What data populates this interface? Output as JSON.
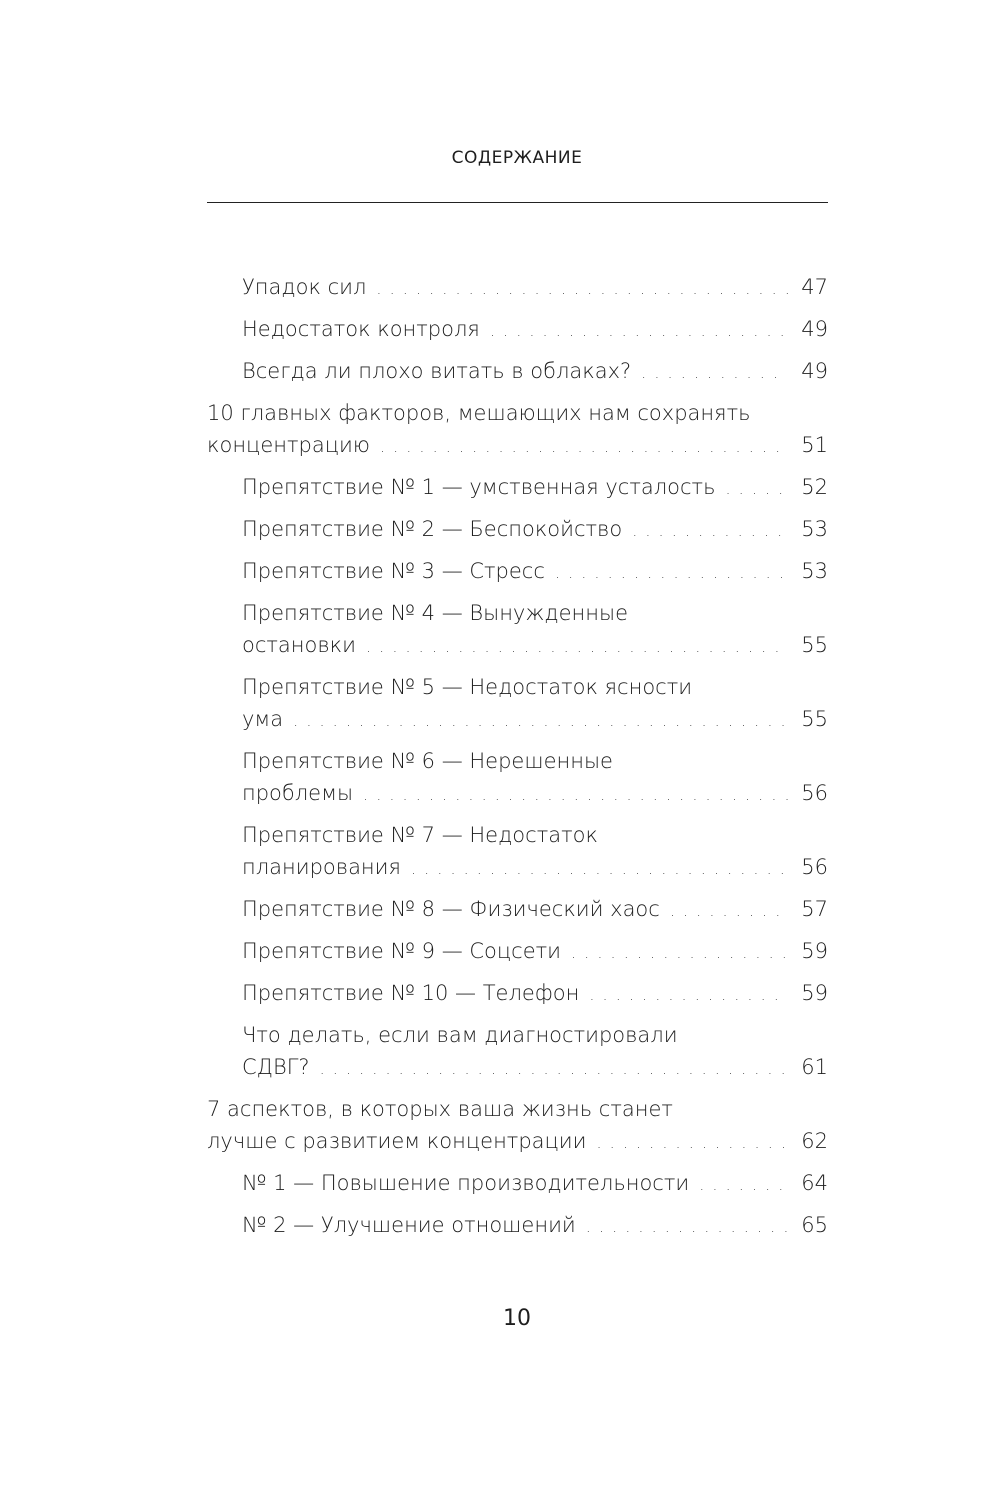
{
  "header": {
    "title": "СОДЕРЖАНИЕ"
  },
  "entries": [
    {
      "level": 2,
      "lines": [
        "Упадок сил"
      ],
      "page": "47"
    },
    {
      "level": 2,
      "lines": [
        "Недостаток контроля"
      ],
      "page": "49"
    },
    {
      "level": 2,
      "lines": [
        "Всегда ли плохо витать в облаках?"
      ],
      "page": "49"
    },
    {
      "level": 1,
      "lines": [
        "10 главных факторов, мешающих нам сохранять",
        "концентрацию"
      ],
      "page": "51"
    },
    {
      "level": 2,
      "lines": [
        "Препятствие № 1 — умственная усталость"
      ],
      "page": "52"
    },
    {
      "level": 2,
      "lines": [
        "Препятствие № 2 — Беспокойство"
      ],
      "page": "53"
    },
    {
      "level": 2,
      "lines": [
        "Препятствие № 3 — Стресс"
      ],
      "page": "53"
    },
    {
      "level": 2,
      "lines": [
        "Препятствие № 4 — Вынужденные",
        "остановки"
      ],
      "page": "55"
    },
    {
      "level": 2,
      "lines": [
        "Препятствие № 5 — Недостаток ясности",
        "ума"
      ],
      "page": "55"
    },
    {
      "level": 2,
      "lines": [
        "Препятствие № 6 — Нерешенные",
        "проблемы"
      ],
      "page": "56"
    },
    {
      "level": 2,
      "lines": [
        "Препятствие № 7 — Недостаток",
        "планирования"
      ],
      "page": "56"
    },
    {
      "level": 2,
      "lines": [
        "Препятствие № 8 — Физический хаос"
      ],
      "page": "57"
    },
    {
      "level": 2,
      "lines": [
        "Препятствие № 9 — Соцсети"
      ],
      "page": "59"
    },
    {
      "level": 2,
      "lines": [
        "Препятствие № 10 — Телефон"
      ],
      "page": "59"
    },
    {
      "level": 2,
      "lines": [
        "Что делать, если вам диагностировали",
        "СДВГ?"
      ],
      "page": "61"
    },
    {
      "level": 1,
      "lines": [
        "7 аспектов, в которых ваша жизнь станет",
        "лучше с развитием концентрации"
      ],
      "page": "62"
    },
    {
      "level": 2,
      "lines": [
        "№ 1 — Повышение производительности"
      ],
      "page": "64"
    },
    {
      "level": 2,
      "lines": [
        "№ 2 — Улучшение отношений"
      ],
      "page": "65"
    }
  ],
  "footer": {
    "page_number": "10"
  }
}
